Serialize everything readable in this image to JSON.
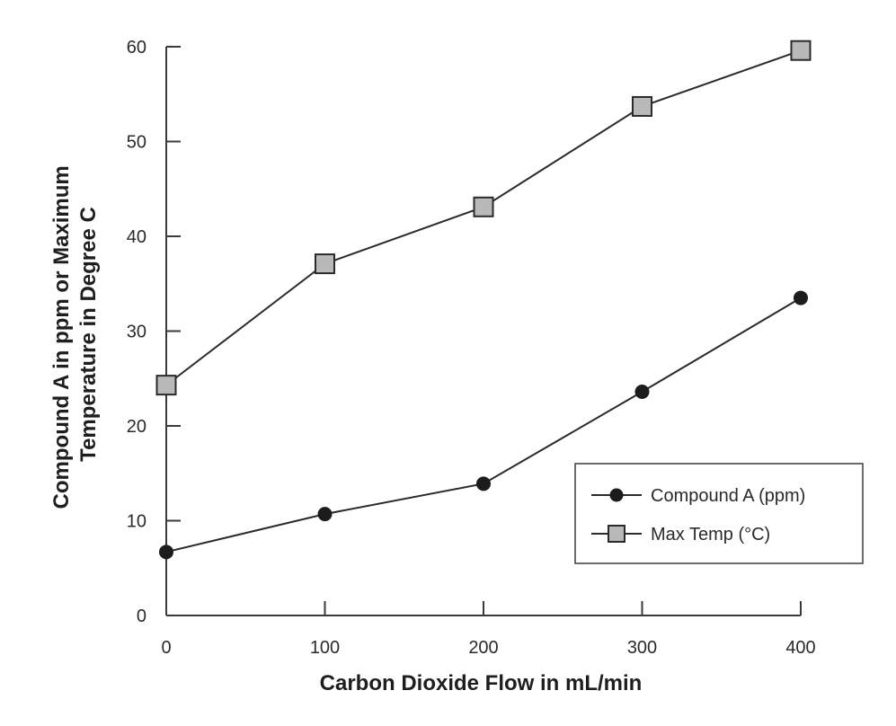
{
  "colors": {
    "background": "#ffffff",
    "axis": "#3a3a3a",
    "line": "#2a2a2a",
    "compound_marker": "#1c1c1c",
    "temp_marker_fill": "#b9b9b9",
    "temp_marker_stroke": "#2a2a2a",
    "legend_border": "#3a3a3a"
  },
  "chart_data": {
    "type": "line",
    "title": "",
    "xlabel": "Carbon Dioxide Flow in mL/min",
    "ylabel_lines": [
      "Compound A in ppm or Maximum",
      "Temperature in Degree C"
    ],
    "xlim": [
      0,
      400
    ],
    "ylim": [
      0,
      60
    ],
    "x": [
      0,
      100,
      200,
      300,
      400
    ],
    "x_ticks": [
      0,
      100,
      200,
      300,
      400
    ],
    "y_ticks": [
      0,
      10,
      20,
      30,
      40,
      50,
      60
    ],
    "grid": false,
    "legend_position": "lower-right",
    "series": [
      {
        "name": "Compound A (ppm)",
        "marker": "circle",
        "values": [
          6.7,
          10.7,
          13.9,
          23.6,
          33.5
        ]
      },
      {
        "name": "Max Temp (°C)",
        "marker": "square",
        "values": [
          24.3,
          37.1,
          43.1,
          53.7,
          59.6
        ]
      }
    ]
  }
}
